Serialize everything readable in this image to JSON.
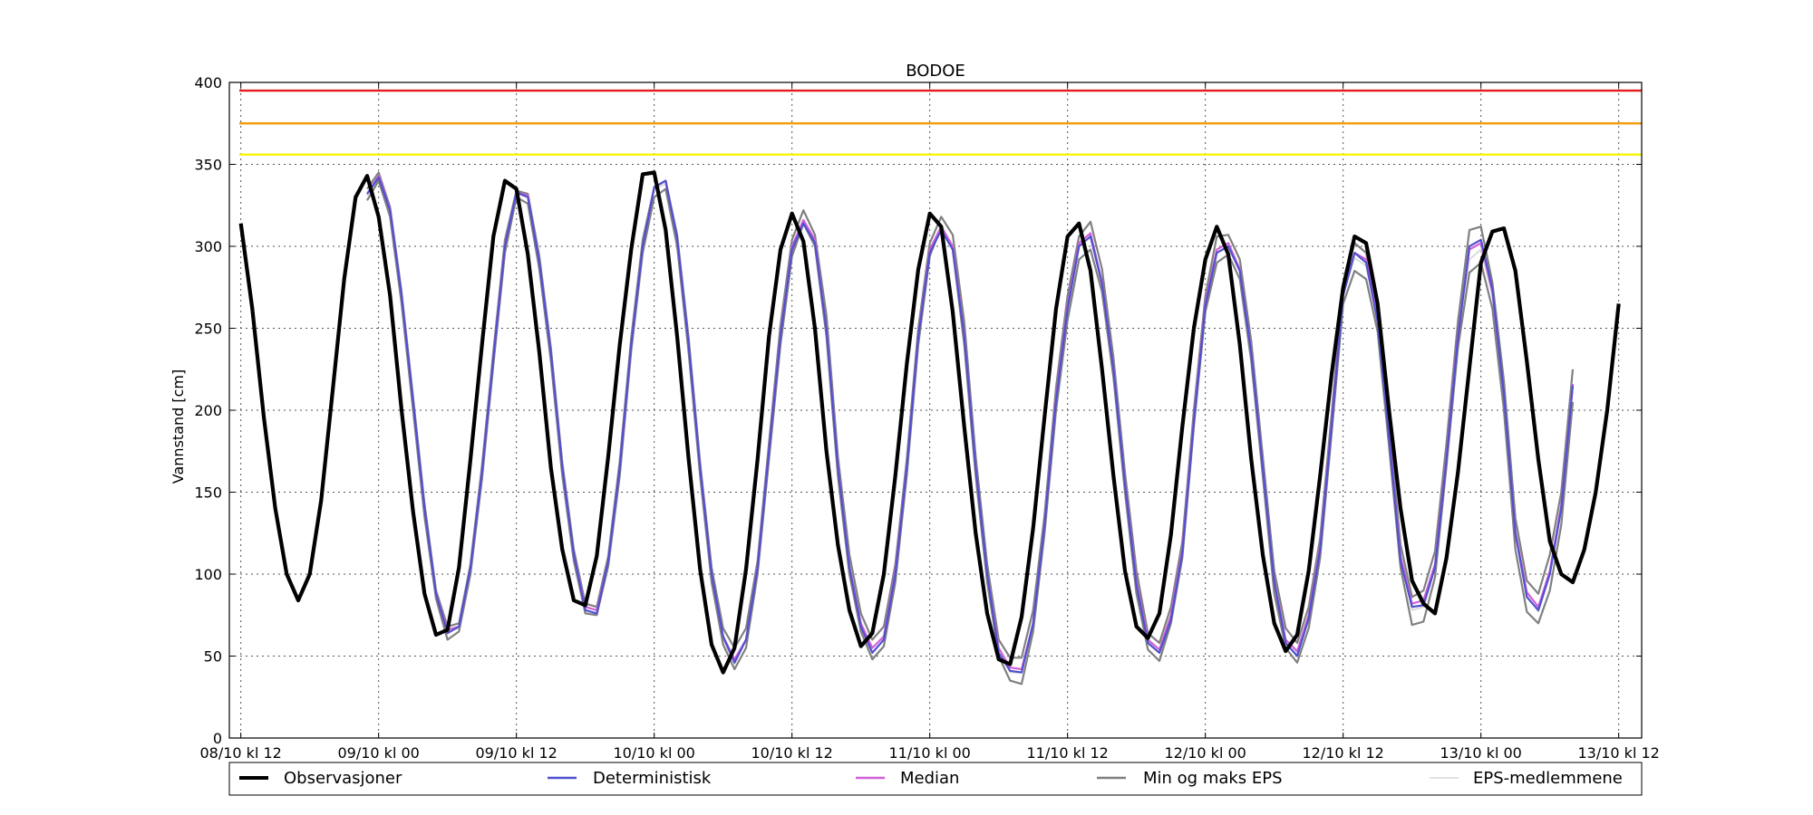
{
  "chart_data": {
    "type": "line",
    "title": "BODOE",
    "xlabel": "",
    "ylabel": "Vannstand [cm]",
    "xlim": [
      "2014-10-08T11:00",
      "2014-10-13T14:00"
    ],
    "ylim": [
      0,
      400
    ],
    "yticks": [
      0,
      50,
      100,
      150,
      200,
      250,
      300,
      350,
      400
    ],
    "xticks": [
      "2014-10-08T12:00",
      "2014-10-09T00:00",
      "2014-10-09T12:00",
      "2014-10-10T00:00",
      "2014-10-10T12:00",
      "2014-10-11T00:00",
      "2014-10-11T12:00",
      "2014-10-12T00:00",
      "2014-10-12T12:00",
      "2014-10-13T00:00",
      "2014-10-13T12:00"
    ],
    "xtick_labels": [
      "08/10 kl 12",
      "09/10 kl 00",
      "09/10 kl 12",
      "10/10 kl 00",
      "10/10 kl 12",
      "11/10 kl 00",
      "11/10 kl 12",
      "12/10 kl 00",
      "12/10 kl 12",
      "13/10 kl 00",
      "13/10 kl 12"
    ],
    "grid": true,
    "legend_position": "bottom",
    "thresholds": [
      {
        "y": 395,
        "color": "#e41a1c"
      },
      {
        "y": 375,
        "color": "#f0a010"
      },
      {
        "y": 356,
        "color": "#f5f500"
      }
    ],
    "time_step_hours": 1,
    "series": [
      {
        "name": "EPS-medlemmene",
        "color": "#d8d8d8",
        "x_start": "2014-10-08T23:00",
        "values": [
          331,
          342,
          322,
          270,
          205,
          140,
          88,
          66,
          67,
          103,
          162,
          232,
          300,
          332,
          330,
          290,
          235,
          165,
          112,
          80,
          78,
          108,
          165,
          240,
          300,
          335,
          338,
          305,
          240,
          165,
          100,
          60,
          45,
          60,
          105,
          175,
          245,
          296,
          316,
          302,
          250,
          165,
          105,
          70,
          55,
          62,
          100,
          165,
          245,
          296,
          313,
          300,
          245,
          165,
          100,
          55,
          40,
          40,
          70,
          130,
          205,
          262,
          300,
          306,
          277,
          225,
          155,
          95,
          59,
          52,
          75,
          115,
          195,
          265,
          296,
          300,
          285,
          235,
          165,
          95,
          60,
          52,
          72,
          115,
          192,
          270,
          293,
          288,
          255,
          185,
          110,
          78,
          80,
          105,
          172,
          245,
          292,
          298,
          270,
          210,
          125,
          87,
          77,
          100,
          140,
          215
        ]
      },
      {
        "name": "Min og maks EPS",
        "color": "#808080",
        "x_start": "2014-10-08T23:00",
        "values": [
          328,
          340,
          318,
          265,
          200,
          135,
          85,
          60,
          65,
          100,
          158,
          228,
          296,
          330,
          326,
          286,
          230,
          160,
          108,
          76,
          75,
          105,
          160,
          236,
          296,
          330,
          335,
          300,
          235,
          160,
          95,
          57,
          42,
          55,
          100,
          170,
          240,
          294,
          314,
          300,
          245,
          160,
          100,
          65,
          48,
          56,
          95,
          160,
          240,
          294,
          312,
          298,
          240,
          160,
          95,
          50,
          35,
          33,
          65,
          125,
          200,
          255,
          292,
          298,
          272,
          220,
          150,
          88,
          54,
          47,
          70,
          110,
          190,
          260,
          290,
          295,
          280,
          230,
          160,
          88,
          55,
          46,
          67,
          110,
          186,
          265,
          285,
          280,
          248,
          178,
          104,
          69,
          71,
          98,
          166,
          238,
          284,
          290,
          262,
          200,
          115,
          77,
          70,
          90,
          130,
          205
        ]
      },
      {
        "name": "",
        "color": "#808080",
        "x_start": "2014-10-08T23:00",
        "values": [
          335,
          345,
          324,
          272,
          208,
          143,
          90,
          68,
          70,
          106,
          166,
          236,
          304,
          334,
          332,
          294,
          238,
          168,
          115,
          82,
          80,
          111,
          169,
          244,
          304,
          336,
          340,
          307,
          244,
          168,
          104,
          67,
          55,
          67,
          108,
          180,
          252,
          304,
          322,
          307,
          258,
          172,
          112,
          76,
          60,
          68,
          106,
          170,
          250,
          302,
          318,
          307,
          254,
          172,
          106,
          60,
          49,
          49,
          78,
          136,
          214,
          270,
          306,
          315,
          286,
          232,
          162,
          102,
          64,
          58,
          80,
          120,
          200,
          270,
          306,
          307,
          292,
          242,
          172,
          102,
          67,
          58,
          80,
          122,
          198,
          276,
          302,
          296,
          262,
          192,
          118,
          86,
          90,
          114,
          180,
          254,
          310,
          312,
          278,
          218,
          134,
          96,
          88,
          112,
          150,
          225
        ]
      },
      {
        "name": "Median",
        "color": "#d060d8",
        "x_start": "2014-10-08T23:00",
        "values": [
          332,
          343,
          323,
          270,
          205,
          140,
          88,
          66,
          68,
          104,
          163,
          233,
          301,
          333,
          331,
          290,
          235,
          165,
          112,
          80,
          78,
          108,
          165,
          240,
          300,
          336,
          340,
          305,
          240,
          165,
          100,
          62,
          48,
          60,
          105,
          176,
          246,
          300,
          316,
          304,
          250,
          166,
          105,
          70,
          55,
          62,
          102,
          166,
          246,
          298,
          312,
          300,
          246,
          166,
          100,
          55,
          43,
          42,
          70,
          131,
          208,
          264,
          302,
          308,
          278,
          226,
          156,
          95,
          60,
          54,
          75,
          115,
          195,
          266,
          298,
          302,
          286,
          236,
          166,
          96,
          60,
          53,
          75,
          117,
          193,
          272,
          296,
          292,
          256,
          186,
          111,
          82,
          84,
          106,
          172,
          246,
          298,
          302,
          272,
          210,
          126,
          89,
          80,
          102,
          142,
          216
        ]
      },
      {
        "name": "Deterministisk",
        "color": "#5050d0",
        "x_start": "2014-10-08T23:00",
        "values": [
          332,
          342,
          322,
          270,
          205,
          140,
          88,
          64,
          68,
          104,
          162,
          232,
          300,
          333,
          330,
          290,
          235,
          165,
          112,
          78,
          76,
          108,
          165,
          240,
          300,
          336,
          340,
          305,
          240,
          165,
          100,
          62,
          46,
          60,
          104,
          175,
          245,
          298,
          314,
          302,
          249,
          165,
          104,
          68,
          52,
          60,
          100,
          165,
          245,
          296,
          310,
          298,
          245,
          165,
          100,
          52,
          41,
          40,
          70,
          130,
          206,
          262,
          300,
          306,
          277,
          225,
          155,
          93,
          58,
          52,
          72,
          113,
          193,
          264,
          296,
          300,
          285,
          235,
          165,
          95,
          58,
          50,
          73,
          115,
          191,
          270,
          296,
          290,
          254,
          184,
          108,
          80,
          81,
          104,
          170,
          244,
          300,
          304,
          274,
          210,
          125,
          86,
          78,
          100,
          140,
          215
        ]
      },
      {
        "name": "Observasjoner",
        "color": "#000000",
        "x_start": "2014-10-08T12:00",
        "values": [
          314,
          262,
          196,
          140,
          100,
          84,
          100,
          145,
          212,
          280,
          330,
          343,
          318,
          270,
          200,
          138,
          88,
          63,
          66,
          104,
          170,
          240,
          306,
          340,
          335,
          295,
          235,
          165,
          115,
          84,
          81,
          111,
          172,
          240,
          298,
          344,
          345,
          310,
          245,
          170,
          103,
          57,
          40,
          55,
          103,
          170,
          245,
          298,
          320,
          303,
          250,
          175,
          118,
          78,
          56,
          64,
          100,
          160,
          228,
          286,
          320,
          312,
          260,
          190,
          125,
          76,
          48,
          45,
          74,
          128,
          196,
          262,
          306,
          314,
          285,
          225,
          160,
          102,
          68,
          61,
          76,
          124,
          190,
          250,
          292,
          312,
          295,
          240,
          170,
          112,
          70,
          53,
          63,
          102,
          160,
          222,
          275,
          306,
          302,
          265,
          200,
          140,
          96,
          82,
          76,
          110,
          162,
          226,
          290,
          309,
          311,
          285,
          230,
          170,
          120,
          100,
          95,
          115,
          150,
          200,
          265
        ]
      }
    ]
  },
  "legend": {
    "observations": "Observasjoner",
    "deterministic": "Deterministisk",
    "median": "Median",
    "minmax": "Min og maks EPS",
    "members": "EPS-medlemmene"
  }
}
